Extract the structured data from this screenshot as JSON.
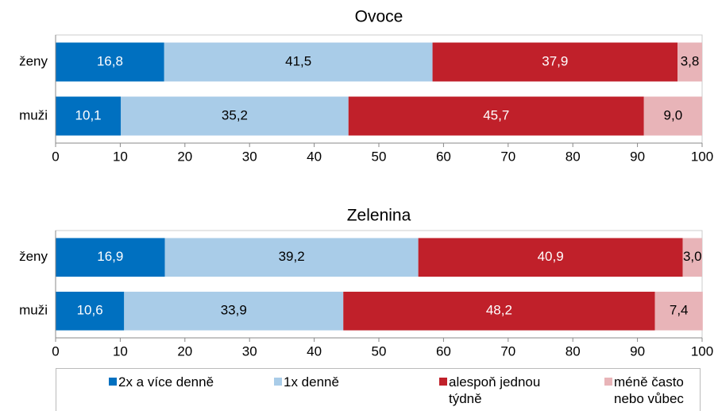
{
  "chart_data": [
    {
      "type": "stacked-bar",
      "title": "Ovoce",
      "categories": [
        "ženy",
        "muži"
      ],
      "series": [
        {
          "values": [
            16.8,
            10.1
          ],
          "value_labels": [
            "16,8",
            "10,1"
          ]
        },
        {
          "values": [
            41.5,
            35.2
          ],
          "value_labels": [
            "41,5",
            "35,2"
          ]
        },
        {
          "values": [
            37.9,
            45.7
          ],
          "value_labels": [
            "37,9",
            "45,7"
          ]
        },
        {
          "values": [
            3.8,
            9.0
          ],
          "value_labels": [
            "3,8",
            "9,0"
          ]
        }
      ],
      "xlim": [
        0,
        100
      ],
      "xticks": [
        0,
        10,
        20,
        30,
        40,
        50,
        60,
        70,
        80,
        90,
        100
      ]
    },
    {
      "type": "stacked-bar",
      "title": "Zelenina",
      "categories": [
        "ženy",
        "muži"
      ],
      "series": [
        {
          "values": [
            16.9,
            10.6
          ],
          "value_labels": [
            "16,9",
            "10,6"
          ]
        },
        {
          "values": [
            39.2,
            33.9
          ],
          "value_labels": [
            "39,2",
            "33,9"
          ]
        },
        {
          "values": [
            40.9,
            48.2
          ],
          "value_labels": [
            "40,9",
            "48,2"
          ]
        },
        {
          "values": [
            3.0,
            7.4
          ],
          "value_labels": [
            "3,0",
            "7,4"
          ]
        }
      ],
      "xlim": [
        0,
        100
      ],
      "xticks": [
        0,
        10,
        20,
        30,
        40,
        50,
        60,
        70,
        80,
        90,
        100
      ]
    }
  ],
  "legend": [
    {
      "name": "2x a více denně",
      "color": "#0070c0"
    },
    {
      "name": "1x denně",
      "color": "#a9cce8"
    },
    {
      "name": "alespoň jednou týdně",
      "color": "#c0202a"
    },
    {
      "name": "méně často nebo vůbec",
      "color": "#e8b4b8"
    }
  ]
}
